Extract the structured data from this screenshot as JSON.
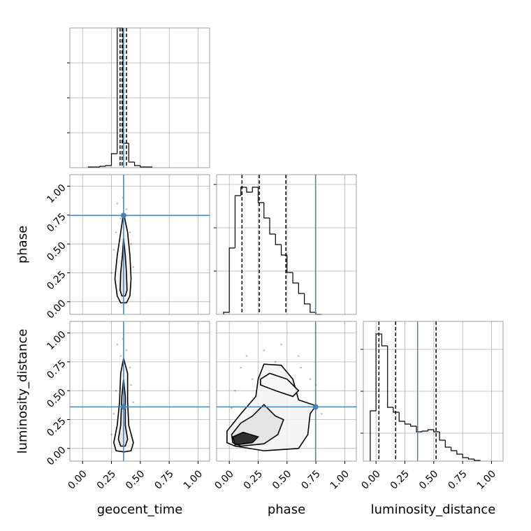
{
  "chart_data": {
    "type": "corner",
    "parameters": [
      "geocent_time",
      "phase",
      "luminosity_distance"
    ],
    "lim": [
      -0.11,
      1.1
    ],
    "ticks": [
      {
        "value": 0,
        "label": "0.00"
      },
      {
        "value": 0.25,
        "label": "0.25"
      },
      {
        "value": 0.5,
        "label": "0.50"
      },
      {
        "value": 0.75,
        "label": "0.75"
      },
      {
        "value": 1,
        "label": "1.00"
      }
    ],
    "truths": [
      0.355,
      0.747,
      0.36
    ],
    "truth_color": "#4682b4",
    "grid": true,
    "histograms": [
      {
        "bins": [
          0.05,
          0.1,
          0.15,
          0.2,
          0.25,
          0.3,
          0.35,
          0.4,
          0.45,
          0.5,
          0.55,
          0.6
        ],
        "counts": [
          1,
          1,
          2,
          3,
          20,
          200,
          35,
          8,
          3,
          1,
          1
        ],
        "ylim": [
          0,
          200
        ],
        "yticks": [
          50,
          100,
          150
        ],
        "quantiles": [
          0.325,
          0.343,
          0.38
        ]
      },
      {
        "bins": [
          -0.05,
          0,
          0.05,
          0.1,
          0.15,
          0.2,
          0.25,
          0.3,
          0.35,
          0.4,
          0.45,
          0.5,
          0.55,
          0.6,
          0.65,
          0.7,
          0.75,
          0.8
        ],
        "counts": [
          3,
          95,
          170,
          182,
          175,
          182,
          160,
          138,
          115,
          100,
          85,
          60,
          45,
          30,
          15,
          3,
          0
        ],
        "ylim": [
          0,
          200
        ],
        "yticks": [
          62,
          124,
          186
        ],
        "quantiles": [
          0.11,
          0.26,
          0.49
        ]
      },
      {
        "bins": [
          -0.05,
          0,
          0.05,
          0.1,
          0.15,
          0.2,
          0.25,
          0.3,
          0.35,
          0.4,
          0.45,
          0.5,
          0.55,
          0.6,
          0.65,
          0.7,
          0.75,
          0.8,
          0.85,
          0.9
        ],
        "counts": [
          72,
          182,
          165,
          77,
          70,
          57,
          53,
          50,
          42,
          43,
          45,
          42,
          30,
          20,
          15,
          10,
          5,
          3,
          1
        ],
        "ylim": [
          0,
          200
        ],
        "yticks": [
          40,
          100,
          160
        ],
        "quantiles": [
          0.025,
          0.17,
          0.52
        ]
      }
    ],
    "pairs": [
      {
        "points": {
          "x": [
            0.3,
            0.33,
            0.38,
            0.41,
            0.27,
            0.36,
            0.44,
            0.31,
            0.35,
            0.39,
            0.25,
            0.42,
            0.34,
            0.37,
            0.32,
            0.4,
            0.29,
            0.36
          ],
          "y": [
            0.85,
            0.72,
            0.8,
            0.6,
            0.45,
            0.05,
            0.3,
            0.1,
            0.9,
            0.15,
            0.25,
            0.5,
            0.02,
            0.65,
            0.35,
            0.05,
            0.6,
            0.45
          ]
        },
        "contours": [
          {
            "x": [
              0.355,
              0.39,
              0.41,
              0.42,
              0.41,
              0.38,
              0.33,
              0.3,
              0.28,
              0.3,
              0.33
            ],
            "y": [
              0.77,
              0.6,
              0.4,
              0.2,
              0.05,
              -0.01,
              -0.01,
              0.05,
              0.2,
              0.4,
              0.6
            ]
          },
          {
            "x": [
              0.355,
              0.37,
              0.38,
              0.385,
              0.37,
              0.34,
              0.325,
              0.33,
              0.345
            ],
            "y": [
              0.55,
              0.4,
              0.25,
              0.1,
              0.05,
              0.05,
              0.1,
              0.25,
              0.4
            ]
          }
        ]
      },
      {
        "points": {
          "x": [
            0.3,
            0.33,
            0.38,
            0.41,
            0.27,
            0.36,
            0.44,
            0.31,
            0.35,
            0.39,
            0.25,
            0.42,
            0.34,
            0.37,
            0.32,
            0.4,
            0.29,
            0.36
          ],
          "y": [
            0.9,
            0.8,
            0.85,
            0.7,
            0.3,
            0.05,
            0.4,
            0.1,
            0.95,
            0.15,
            0.12,
            0.55,
            0.03,
            0.6,
            0.2,
            0.02,
            0.5,
            0.25
          ]
        },
        "contours": [
          {
            "x": [
              0.355,
              0.39,
              0.39,
              0.4,
              0.44,
              0.42,
              0.36,
              0.29,
              0.27,
              0.3,
              0.32,
              0.33
            ],
            "y": [
              0.78,
              0.65,
              0.4,
              0.2,
              0.05,
              -0.02,
              -0.03,
              -0.02,
              0.05,
              0.2,
              0.4,
              0.65
            ]
          },
          {
            "x": [
              0.355,
              0.37,
              0.37,
              0.39,
              0.37,
              0.33,
              0.31,
              0.33,
              0.34
            ],
            "y": [
              0.6,
              0.45,
              0.2,
              0.08,
              0.02,
              0.02,
              0.08,
              0.2,
              0.45
            ]
          }
        ]
      },
      {
        "points": {
          "x": [
            0.05,
            0.15,
            0.3,
            0.45,
            0.6,
            0.7,
            0.8,
            0.2,
            0.35,
            0.5,
            0.65,
            0.1,
            0.4,
            0.55,
            0.25,
            0.75,
            0.02,
            0.62
          ],
          "y": [
            0.5,
            0.8,
            0.85,
            0.9,
            0.8,
            0.6,
            0.3,
            0.6,
            0.05,
            0.02,
            0.1,
            0.7,
            0.75,
            0.3,
            0.45,
            0.55,
            0.35,
            0.7
          ]
        },
        "contours": [
          {
            "x": [
              0.05,
              0.3,
              0.6,
              0.68,
              0.7,
              0.75,
              0.6,
              0.55,
              0.45,
              0.3,
              0.25,
              0.23,
              0.1,
              -0.02,
              -0.02
            ],
            "y": [
              0.02,
              -0.02,
              0.0,
              0.12,
              0.3,
              0.37,
              0.42,
              0.6,
              0.72,
              0.73,
              0.6,
              0.45,
              0.3,
              0.15,
              0.05
            ]
          },
          {
            "x": [
              0.1,
              0.3,
              0.42,
              0.47,
              0.4,
              0.3,
              0.2,
              0.1,
              0.02,
              0.03
            ],
            "y": [
              0.02,
              0.04,
              0.12,
              0.25,
              0.28,
              0.38,
              0.28,
              0.22,
              0.12,
              0.05
            ]
          },
          {
            "x": [
              0.27,
              0.4,
              0.55,
              0.6,
              0.5,
              0.35,
              0.27
            ],
            "y": [
              0.55,
              0.5,
              0.45,
              0.5,
              0.6,
              0.65,
              0.6
            ]
          },
          {
            "x": [
              0.05,
              0.2,
              0.25,
              0.12,
              0.03
            ],
            "y": [
              0.03,
              0.05,
              0.1,
              0.14,
              0.1
            ]
          }
        ]
      }
    ]
  }
}
